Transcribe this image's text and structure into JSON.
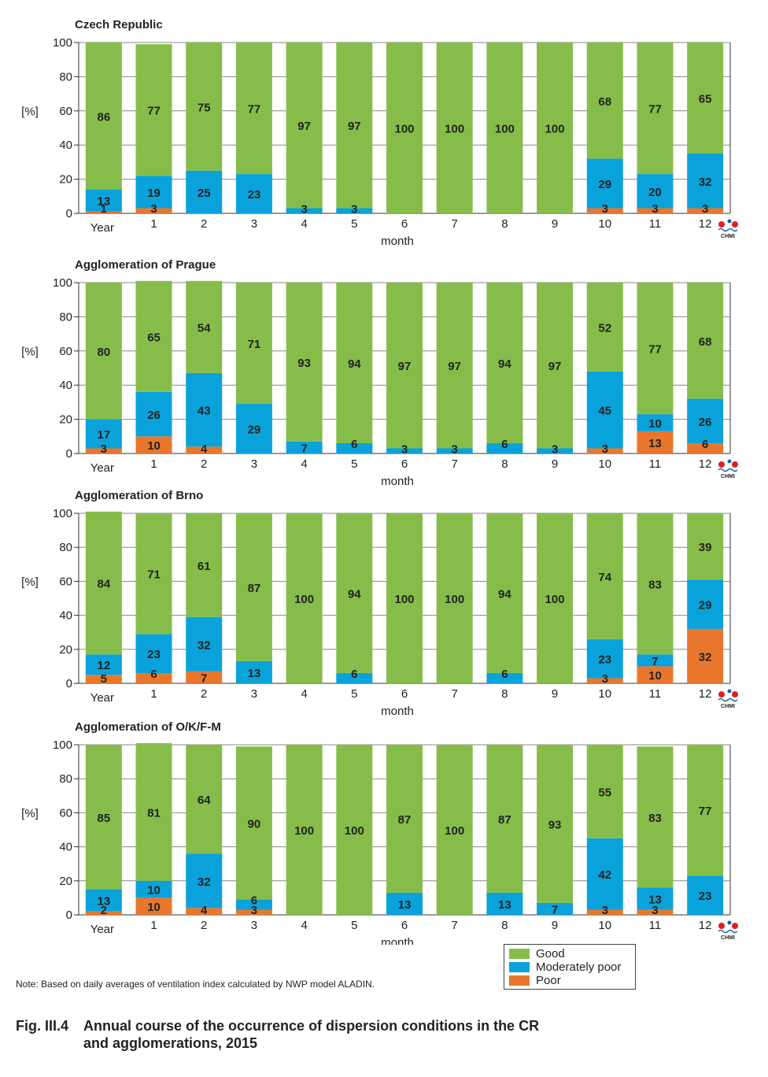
{
  "colors": {
    "good": "#86bd4a",
    "moderately_poor": "#0aa2db",
    "poor": "#e8772d",
    "grid": "#888888"
  },
  "legend": {
    "good": "Good",
    "moderately_poor": "Moderately poor",
    "poor": "Poor"
  },
  "logo_text": "CHMI",
  "note": "Note: Based on daily averages of ventilation index calculated by NWP model ALADIN.",
  "figure": {
    "number": "Fig. III.4",
    "title_line1": "Annual course of the occurrence of dispersion conditions in the CR",
    "title_line2": "and agglomerations, 2015"
  },
  "chart_data": [
    {
      "type": "bar",
      "stacked": true,
      "title": "Czech Republic",
      "ylabel": "[%]",
      "xlabel": "month",
      "ylim": [
        0,
        100
      ],
      "yticks": [
        0,
        20,
        40,
        60,
        80,
        100
      ],
      "grid": true,
      "categories": [
        "Year",
        "1",
        "2",
        "3",
        "4",
        "5",
        "6",
        "7",
        "8",
        "9",
        "10",
        "11",
        "12"
      ],
      "series": [
        {
          "key": "poor",
          "values": [
            1,
            3,
            0,
            0,
            0,
            0,
            0,
            0,
            0,
            0,
            3,
            3,
            3
          ],
          "labels": [
            "1",
            "3",
            "",
            "",
            "",
            "",
            "",
            "",
            "",
            "",
            "3",
            "3",
            "3"
          ]
        },
        {
          "key": "moderately_poor",
          "values": [
            13,
            19,
            25,
            23,
            3,
            3,
            0,
            0,
            0,
            0,
            29,
            20,
            32
          ],
          "labels": [
            "13",
            "19",
            "25",
            "23",
            "3",
            "3",
            "",
            "",
            "",
            "",
            "29",
            "20",
            "32"
          ]
        },
        {
          "key": "good",
          "values": [
            86,
            77,
            75,
            77,
            97,
            97,
            100,
            100,
            100,
            100,
            68,
            77,
            65
          ],
          "labels": [
            "86",
            "77",
            "75",
            "77",
            "97",
            "97",
            "100",
            "100",
            "100",
            "100",
            "68",
            "77",
            "65"
          ]
        }
      ]
    },
    {
      "type": "bar",
      "stacked": true,
      "title": "Agglomeration of Prague",
      "ylabel": "[%]",
      "xlabel": "month",
      "ylim": [
        0,
        100
      ],
      "yticks": [
        0,
        20,
        40,
        60,
        80,
        100
      ],
      "grid": true,
      "categories": [
        "Year",
        "1",
        "2",
        "3",
        "4",
        "5",
        "6",
        "7",
        "8",
        "9",
        "10",
        "11",
        "12"
      ],
      "series": [
        {
          "key": "poor",
          "values": [
            3,
            10,
            4,
            0,
            0,
            0,
            0,
            0,
            0,
            0,
            3,
            13,
            6
          ],
          "labels": [
            "3",
            "10",
            "4",
            "",
            "",
            "",
            "",
            "",
            "",
            "",
            "3",
            "13",
            "6"
          ]
        },
        {
          "key": "moderately_poor",
          "values": [
            17,
            26,
            43,
            29,
            7,
            6,
            3,
            3,
            6,
            3,
            45,
            10,
            26
          ],
          "labels": [
            "17",
            "26",
            "43",
            "29",
            "7",
            "6",
            "3",
            "3",
            "6",
            "3",
            "45",
            "10",
            "26"
          ]
        },
        {
          "key": "good",
          "values": [
            80,
            65,
            54,
            71,
            93,
            94,
            97,
            97,
            94,
            97,
            52,
            77,
            68
          ],
          "labels": [
            "80",
            "65",
            "54",
            "71",
            "93",
            "94",
            "97",
            "97",
            "94",
            "97",
            "52",
            "77",
            "68"
          ]
        }
      ]
    },
    {
      "type": "bar",
      "stacked": true,
      "title": "Agglomeration of Brno",
      "ylabel": "[%]",
      "xlabel": "month",
      "ylim": [
        0,
        100
      ],
      "yticks": [
        0,
        20,
        40,
        60,
        80,
        100
      ],
      "grid": true,
      "categories": [
        "Year",
        "1",
        "2",
        "3",
        "4",
        "5",
        "6",
        "7",
        "8",
        "9",
        "10",
        "11",
        "12"
      ],
      "series": [
        {
          "key": "poor",
          "values": [
            5,
            6,
            7,
            0,
            0,
            0,
            0,
            0,
            0,
            0,
            3,
            10,
            32
          ],
          "labels": [
            "5",
            "6",
            "7",
            "",
            "",
            "",
            "",
            "",
            "",
            "",
            "3",
            "10",
            "32"
          ]
        },
        {
          "key": "moderately_poor",
          "values": [
            12,
            23,
            32,
            13,
            0,
            6,
            0,
            0,
            6,
            0,
            23,
            7,
            29
          ],
          "labels": [
            "12",
            "23",
            "32",
            "13",
            "",
            "6",
            "",
            "",
            "6",
            "",
            "23",
            "7",
            "29"
          ]
        },
        {
          "key": "good",
          "values": [
            84,
            71,
            61,
            87,
            100,
            94,
            100,
            100,
            94,
            100,
            74,
            83,
            39
          ],
          "labels": [
            "84",
            "71",
            "61",
            "87",
            "100",
            "94",
            "100",
            "100",
            "94",
            "100",
            "74",
            "83",
            "39"
          ]
        }
      ]
    },
    {
      "type": "bar",
      "stacked": true,
      "title": "Agglomeration of O/K/F-M",
      "ylabel": "[%]",
      "xlabel": "month",
      "ylim": [
        0,
        100
      ],
      "yticks": [
        0,
        20,
        40,
        60,
        80,
        100
      ],
      "grid": true,
      "categories": [
        "Year",
        "1",
        "2",
        "3",
        "4",
        "5",
        "6",
        "7",
        "8",
        "9",
        "10",
        "11",
        "12"
      ],
      "series": [
        {
          "key": "poor",
          "values": [
            2,
            10,
            4,
            3,
            0,
            0,
            0,
            0,
            0,
            0,
            3,
            3,
            0
          ],
          "labels": [
            "2",
            "10",
            "4",
            "3",
            "",
            "",
            "",
            "",
            "",
            "",
            "3",
            "3",
            ""
          ]
        },
        {
          "key": "moderately_poor",
          "values": [
            13,
            10,
            32,
            6,
            0,
            0,
            13,
            0,
            13,
            7,
            42,
            13,
            23
          ],
          "labels": [
            "13",
            "10",
            "32",
            "6",
            "",
            "",
            "13",
            "",
            "13",
            "7",
            "42",
            "13",
            "23"
          ]
        },
        {
          "key": "good",
          "values": [
            85,
            81,
            64,
            90,
            100,
            100,
            87,
            100,
            87,
            93,
            55,
            83,
            77
          ],
          "labels": [
            "85",
            "81",
            "64",
            "90",
            "100",
            "100",
            "87",
            "100",
            "87",
            "93",
            "55",
            "83",
            "77"
          ]
        }
      ]
    }
  ]
}
